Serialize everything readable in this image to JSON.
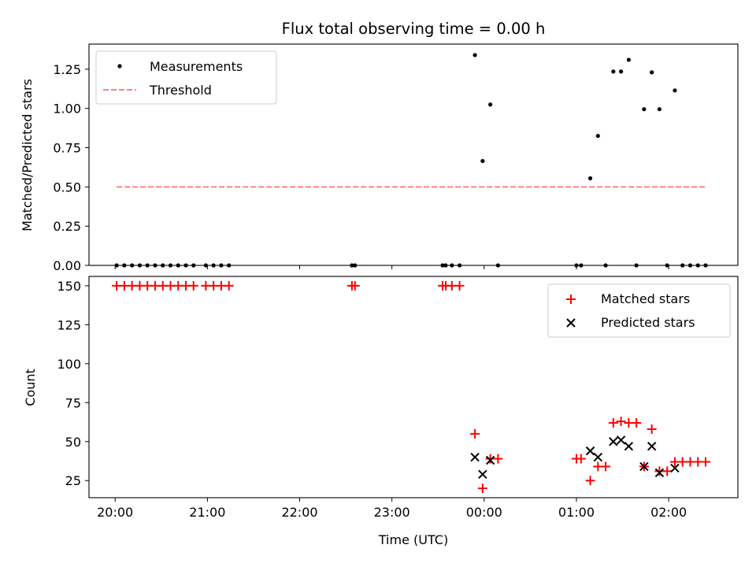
{
  "chart_data": [
    {
      "type": "scatter",
      "title": "Flux total observing time = 0.00 h",
      "ylabel": "Matched/Predicted stars",
      "xlabel": "",
      "xlim": [
        "19:43",
        "02:45"
      ],
      "ylim": [
        0,
        1.41
      ],
      "x_ticks": [
        "20:00",
        "21:00",
        "22:00",
        "23:00",
        "00:00",
        "01:00",
        "02:00"
      ],
      "x_tick_labels_shown": false,
      "y_ticks": [
        0.0,
        0.25,
        0.5,
        0.75,
        1.0,
        1.25
      ],
      "y_tick_labels": [
        "0.00",
        "0.25",
        "0.50",
        "0.75",
        "1.00",
        "1.25"
      ],
      "legend_position": "upper-left",
      "grid": false,
      "series": [
        {
          "name": "Measurements",
          "marker": "dot",
          "color": "#000000",
          "points": [
            [
              "20:01",
              0
            ],
            [
              "20:06",
              0
            ],
            [
              "20:11",
              0
            ],
            [
              "20:16",
              0
            ],
            [
              "20:21",
              0
            ],
            [
              "20:26",
              0
            ],
            [
              "20:31",
              0
            ],
            [
              "20:36",
              0
            ],
            [
              "20:41",
              0
            ],
            [
              "20:46",
              0
            ],
            [
              "20:51",
              0
            ],
            [
              "20:59",
              0
            ],
            [
              "21:04",
              0
            ],
            [
              "21:09",
              0
            ],
            [
              "21:14",
              0
            ],
            [
              "22:34",
              0
            ],
            [
              "22:36",
              0
            ],
            [
              "23:33",
              0
            ],
            [
              "23:35",
              0
            ],
            [
              "23:39",
              0
            ],
            [
              "23:44",
              0
            ],
            [
              "23:54",
              1.34
            ],
            [
              "23:59",
              0.665
            ],
            [
              "00:04",
              1.025
            ],
            [
              "00:09",
              0
            ],
            [
              "01:00",
              0
            ],
            [
              "01:03",
              0
            ],
            [
              "01:09",
              0.555
            ],
            [
              "01:14",
              0.825
            ],
            [
              "01:19",
              0
            ],
            [
              "01:24",
              1.235
            ],
            [
              "01:29",
              1.235
            ],
            [
              "01:34",
              1.31
            ],
            [
              "01:39",
              0
            ],
            [
              "01:44",
              0.995
            ],
            [
              "01:49",
              1.23
            ],
            [
              "01:54",
              0.995
            ],
            [
              "01:59",
              0
            ],
            [
              "02:04",
              1.115
            ],
            [
              "02:09",
              0
            ],
            [
              "02:14",
              0
            ],
            [
              "02:19",
              0
            ],
            [
              "02:24",
              0
            ]
          ]
        },
        {
          "name": "Threshold",
          "style": "dashed",
          "color": "#ff7f7f",
          "x": [
            "20:01",
            "02:24"
          ],
          "y": [
            0.5,
            0.5
          ]
        }
      ]
    },
    {
      "type": "scatter",
      "title": "",
      "xlabel": "Time (UTC)",
      "ylabel": "Count",
      "xlim": [
        "19:43",
        "02:45"
      ],
      "ylim": [
        14,
        156
      ],
      "x_ticks": [
        "20:00",
        "21:00",
        "22:00",
        "23:00",
        "00:00",
        "01:00",
        "02:00"
      ],
      "x_tick_labels": [
        "20:00",
        "21:00",
        "22:00",
        "23:00",
        "00:00",
        "01:00",
        "02:00"
      ],
      "y_ticks": [
        25,
        50,
        75,
        100,
        125,
        150
      ],
      "y_tick_labels": [
        "25",
        "50",
        "75",
        "100",
        "125",
        "150"
      ],
      "legend_position": "upper-right",
      "grid": false,
      "series": [
        {
          "name": "Matched stars",
          "marker": "plus",
          "color": "#ff0000",
          "points": [
            [
              "20:01",
              150
            ],
            [
              "20:06",
              150
            ],
            [
              "20:11",
              150
            ],
            [
              "20:16",
              150
            ],
            [
              "20:21",
              150
            ],
            [
              "20:26",
              150
            ],
            [
              "20:31",
              150
            ],
            [
              "20:36",
              150
            ],
            [
              "20:41",
              150
            ],
            [
              "20:46",
              150
            ],
            [
              "20:51",
              150
            ],
            [
              "20:59",
              150
            ],
            [
              "21:04",
              150
            ],
            [
              "21:09",
              150
            ],
            [
              "21:14",
              150
            ],
            [
              "22:34",
              150
            ],
            [
              "22:36",
              150
            ],
            [
              "23:33",
              150
            ],
            [
              "23:35",
              150
            ],
            [
              "23:39",
              150
            ],
            [
              "23:44",
              150
            ],
            [
              "23:54",
              55
            ],
            [
              "23:59",
              20
            ],
            [
              "00:04",
              39
            ],
            [
              "00:09",
              39
            ],
            [
              "01:00",
              39
            ],
            [
              "01:03",
              39
            ],
            [
              "01:09",
              25
            ],
            [
              "01:14",
              34
            ],
            [
              "01:19",
              34
            ],
            [
              "01:24",
              62
            ],
            [
              "01:29",
              63
            ],
            [
              "01:34",
              62
            ],
            [
              "01:39",
              62
            ],
            [
              "01:44",
              34
            ],
            [
              "01:49",
              58
            ],
            [
              "01:54",
              31
            ],
            [
              "01:59",
              31
            ],
            [
              "02:04",
              37
            ],
            [
              "02:09",
              37
            ],
            [
              "02:14",
              37
            ],
            [
              "02:19",
              37
            ],
            [
              "02:24",
              37
            ]
          ]
        },
        {
          "name": "Predicted stars",
          "marker": "x",
          "color": "#000000",
          "points": [
            [
              "23:54",
              40
            ],
            [
              "23:59",
              29
            ],
            [
              "00:04",
              38
            ],
            [
              "01:09",
              44
            ],
            [
              "01:14",
              40
            ],
            [
              "01:24",
              50
            ],
            [
              "01:29",
              51
            ],
            [
              "01:34",
              47
            ],
            [
              "01:44",
              34
            ],
            [
              "01:49",
              47
            ],
            [
              "01:54",
              30
            ],
            [
              "02:04",
              33
            ]
          ]
        }
      ]
    }
  ],
  "colors": {
    "background": "#ffffff",
    "axes": "#000000",
    "matched": "#ff0000",
    "threshold": "#ff7f7f"
  }
}
